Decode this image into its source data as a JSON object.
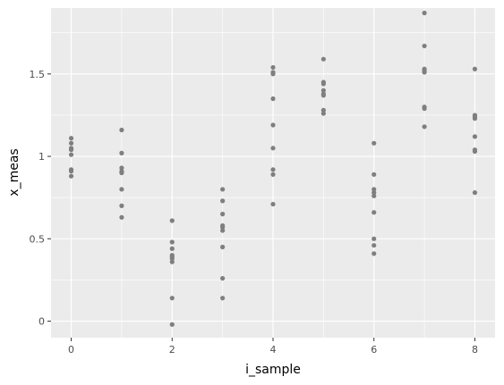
{
  "chart_data": {
    "type": "scatter",
    "title": "",
    "xlabel": "i_sample",
    "ylabel": "x_meas",
    "xlim": [
      -0.4,
      8.4
    ],
    "ylim": [
      -0.1,
      1.9
    ],
    "x_ticks": [
      0,
      2,
      4,
      6,
      8
    ],
    "x_tick_labels": [
      "0",
      "2",
      "4",
      "6",
      "8"
    ],
    "y_ticks": [
      0,
      0.5,
      1,
      1.5
    ],
    "y_tick_labels": [
      "0",
      "0.5",
      "1",
      "1.5"
    ],
    "grid": true,
    "legend": "none",
    "point_color": "#7f7f7f",
    "panel_color": "#ebebeb",
    "grid_color": "#ffffff",
    "series": [
      {
        "x": [
          0,
          0,
          0,
          0,
          0,
          0,
          0,
          0,
          1,
          1,
          1,
          1,
          1,
          1,
          1,
          1,
          2,
          2,
          2,
          2,
          2,
          2,
          2,
          2,
          2,
          3,
          3,
          3,
          3,
          3,
          3,
          3,
          3,
          3,
          4,
          4,
          4,
          4,
          4,
          4,
          4,
          4,
          4,
          5,
          5,
          5,
          5,
          5,
          5,
          5,
          5,
          6,
          6,
          6,
          6,
          6,
          6,
          6,
          6,
          6,
          7,
          7,
          7,
          7,
          7,
          7,
          7,
          7,
          8,
          8,
          8,
          8,
          8,
          8,
          8,
          8
        ],
        "y": [
          1.11,
          1.08,
          1.05,
          1.01,
          0.92,
          0.91,
          0.88,
          1.04,
          1.16,
          1.02,
          0.93,
          0.9,
          0.8,
          0.7,
          0.63,
          0.91,
          0.61,
          0.48,
          0.44,
          0.4,
          0.38,
          0.36,
          0.14,
          -0.02,
          0.39,
          0.8,
          0.73,
          0.65,
          0.58,
          0.55,
          0.45,
          0.26,
          0.14,
          0.57,
          1.54,
          1.5,
          1.35,
          1.19,
          1.05,
          0.92,
          0.89,
          0.71,
          1.51,
          1.59,
          1.45,
          1.4,
          1.37,
          1.28,
          1.26,
          1.38,
          1.44,
          1.08,
          0.89,
          0.8,
          0.76,
          0.66,
          0.5,
          0.46,
          0.41,
          0.78,
          1.87,
          1.67,
          1.53,
          1.51,
          1.3,
          1.29,
          1.18,
          1.52,
          1.53,
          1.25,
          1.23,
          1.12,
          1.04,
          1.03,
          0.78,
          1.24
        ]
      }
    ]
  }
}
